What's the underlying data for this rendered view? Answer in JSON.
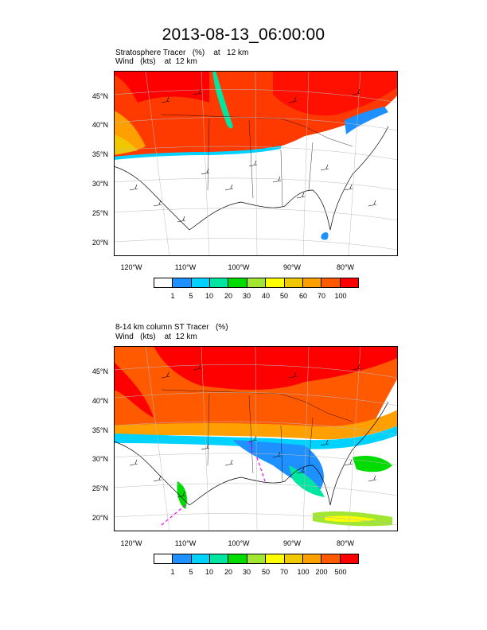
{
  "title": "2013-08-13_06:00:00",
  "panels": [
    {
      "line1": "Stratosphere Tracer   (%)    at   12 km",
      "line2": "Wind   (kts)    at  12 km",
      "lat_labels": [
        "45°N",
        "40°N",
        "35°N",
        "30°N",
        "25°N",
        "20°N"
      ],
      "lon_labels": [
        "120°W",
        "110°W",
        "100°W",
        "90°W",
        "80°W"
      ],
      "colorbar_labels": [
        "1",
        "5",
        "10",
        "20",
        "30",
        "40",
        "50",
        "60",
        "70",
        "100"
      ]
    },
    {
      "line1": "8-14 km column ST Tracer   (%)",
      "line2": "Wind   (kts)    at  12 km",
      "lat_labels": [
        "45°N",
        "40°N",
        "35°N",
        "30°N",
        "25°N",
        "20°N"
      ],
      "lon_labels": [
        "120°W",
        "110°W",
        "100°W",
        "90°W",
        "80°W"
      ],
      "colorbar_labels": [
        "1",
        "5",
        "10",
        "20",
        "30",
        "50",
        "70",
        "100",
        "200",
        "500"
      ]
    }
  ],
  "colors": {
    "palette": [
      "#ffffff",
      "#1e90ff",
      "#00d2ff",
      "#00e6a0",
      "#00dc00",
      "#a0e632",
      "#ffff00",
      "#f0c800",
      "#ffa000",
      "#ff5a00",
      "#ff0000"
    ],
    "background": "#ffffff"
  }
}
